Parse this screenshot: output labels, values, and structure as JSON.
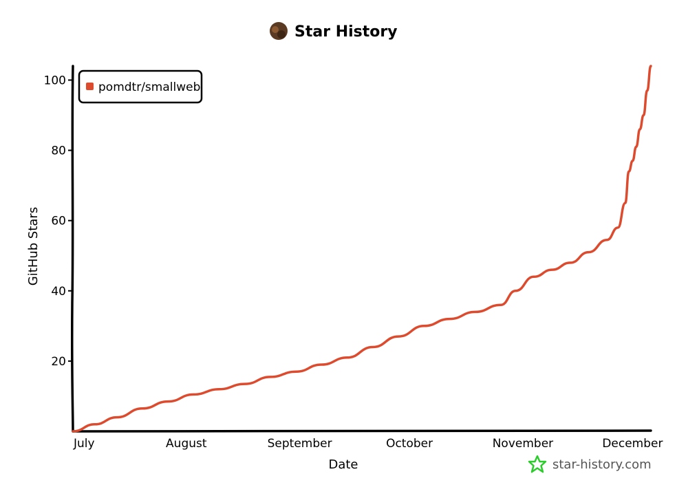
{
  "title": "Star History",
  "watermark": "star-history.com",
  "colors": {
    "series": "#dd4b2f",
    "axis": "#000000",
    "watermark_icon": "#2dcc2d"
  },
  "icons": {
    "title": "avatar-icon",
    "watermark": "star-icon"
  },
  "chart_data": {
    "type": "line",
    "title": "Star History",
    "xlabel": "Date",
    "ylabel": "GitHub Stars",
    "x_ticks": [
      "July",
      "August",
      "September",
      "October",
      "November",
      "December"
    ],
    "y_ticks": [
      20,
      40,
      60,
      80,
      100
    ],
    "ylim": [
      0,
      104
    ],
    "xlim": [
      "2023-07-01",
      "2023-12-06"
    ],
    "grid": false,
    "legend_position": "top-left",
    "series": [
      {
        "name": "pomdtr/smallweb",
        "x": [
          "2023-07-01",
          "2023-07-07",
          "2023-07-13",
          "2023-07-20",
          "2023-07-27",
          "2023-08-03",
          "2023-08-10",
          "2023-08-17",
          "2023-08-24",
          "2023-08-31",
          "2023-09-07",
          "2023-09-14",
          "2023-09-21",
          "2023-09-28",
          "2023-10-05",
          "2023-10-12",
          "2023-10-19",
          "2023-10-26",
          "2023-10-30",
          "2023-11-04",
          "2023-11-09",
          "2023-11-14",
          "2023-11-19",
          "2023-11-24",
          "2023-11-27",
          "2023-11-29",
          "2023-11-30",
          "2023-12-01",
          "2023-12-02",
          "2023-12-03",
          "2023-12-04",
          "2023-12-05",
          "2023-12-06"
        ],
        "y": [
          0,
          2,
          4,
          6.5,
          8.5,
          10.5,
          12,
          13.5,
          15.5,
          17,
          19,
          21,
          24,
          27,
          30,
          32,
          34,
          36,
          40,
          44,
          46,
          48,
          51,
          54.5,
          58,
          65,
          74,
          77,
          81,
          86,
          90,
          97,
          104
        ]
      }
    ]
  }
}
